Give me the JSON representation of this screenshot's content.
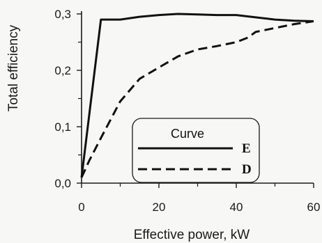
{
  "chart_data": {
    "type": "line",
    "xlabel": "Effective power, kW",
    "ylabel": "Total efficiency",
    "xlim": [
      0,
      60
    ],
    "ylim": [
      0,
      0.3
    ],
    "x_ticks": [
      "0",
      "20",
      "40",
      "60"
    ],
    "y_ticks": [
      "0,0",
      "0,1",
      "0,2",
      "0,3"
    ],
    "grid": false,
    "legend": {
      "title": "Curve",
      "placement": "center-right"
    },
    "series": [
      {
        "name": "E",
        "style": "solid",
        "x": [
          0,
          5,
          10,
          15,
          20,
          25,
          30,
          35,
          40,
          45,
          50,
          55,
          60
        ],
        "y": [
          0.01,
          0.29,
          0.29,
          0.295,
          0.298,
          0.3,
          0.299,
          0.298,
          0.298,
          0.294,
          0.29,
          0.288,
          0.287
        ]
      },
      {
        "name": "D",
        "style": "dashed",
        "x": [
          0,
          2,
          5,
          10,
          15,
          20,
          25,
          30,
          35,
          40,
          43,
          45,
          50,
          55,
          60
        ],
        "y": [
          0.01,
          0.04,
          0.08,
          0.145,
          0.185,
          0.205,
          0.225,
          0.237,
          0.243,
          0.25,
          0.258,
          0.268,
          0.275,
          0.282,
          0.287
        ]
      }
    ]
  }
}
